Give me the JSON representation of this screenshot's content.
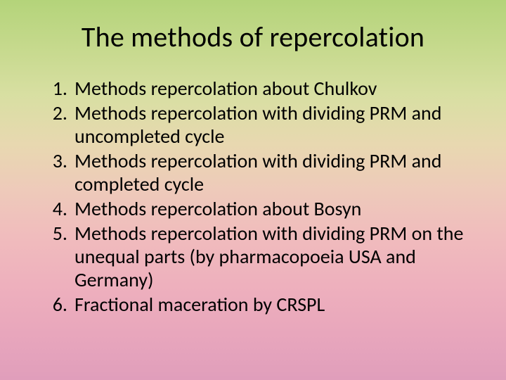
{
  "slide": {
    "title": "The methods of repercolation",
    "title_fontsize": 40,
    "list_fontsize": 28,
    "items": [
      "Methods repercolation about Chulkov",
      "Methods repercolation with dividing PRM and uncompleted cycle",
      "Methods repercolation with dividing PRM and completed cycle",
      "Methods repercolation about Bosyn",
      "Methods repercolation with dividing PRM on the unequal parts (by pharmacopoeia USA and Germany)",
      "Fractional maceration by CRSPL"
    ],
    "background_gradient_stops": [
      "#b4d47a",
      "#c5d98c",
      "#d8dfa2",
      "#e8d8b0",
      "#eecaba",
      "#f0bcbd",
      "#eeb0bd",
      "#e8a6bc",
      "#e09ebb"
    ],
    "text_color": "#000000"
  }
}
